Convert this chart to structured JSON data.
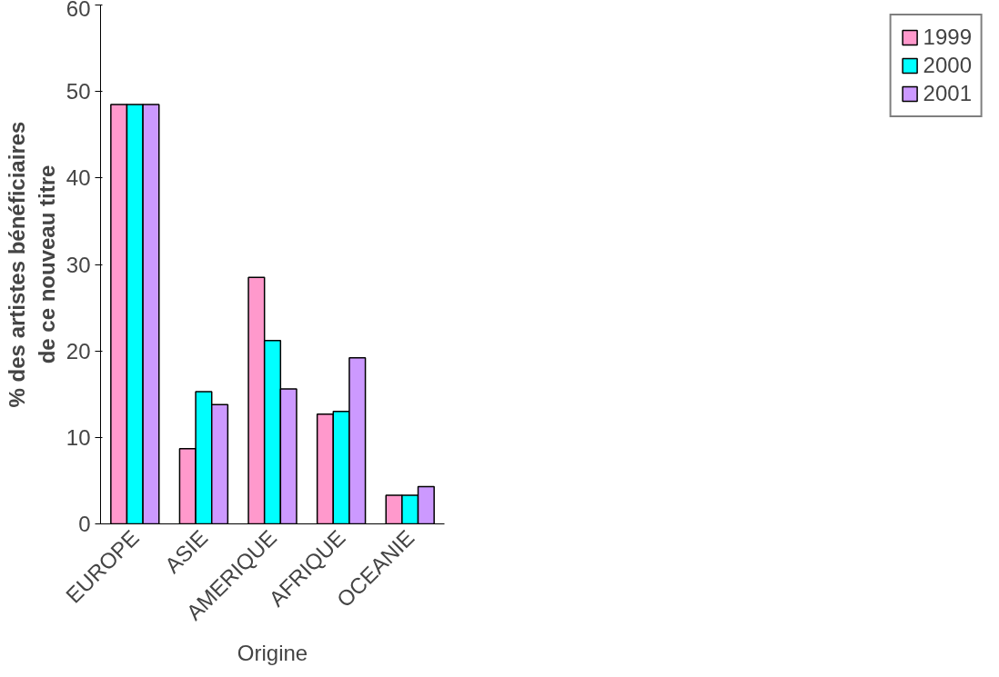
{
  "chart_data": {
    "type": "bar",
    "xlabel": "Origine",
    "ylabel": "% des artistes bénéficiaires\nde ce nouveau titre",
    "categories": [
      "EUROPE",
      "ASIE",
      "AMERIQUE",
      "AFRIQUE",
      "OCEANIE"
    ],
    "series": [
      {
        "name": "1999",
        "color": "#ff99cc",
        "values": [
          48.5,
          8.7,
          28.5,
          12.7,
          3.3
        ]
      },
      {
        "name": "2000",
        "color": "#00ffff",
        "values": [
          48.5,
          15.3,
          21.2,
          13.0,
          3.3
        ]
      },
      {
        "name": "2001",
        "color": "#cc99ff",
        "values": [
          48.5,
          13.8,
          15.6,
          19.2,
          4.3
        ]
      }
    ],
    "ylim": [
      0,
      60
    ],
    "yticks": [
      0,
      10,
      20,
      30,
      40,
      50,
      60
    ],
    "grid": false,
    "legend": "right"
  }
}
